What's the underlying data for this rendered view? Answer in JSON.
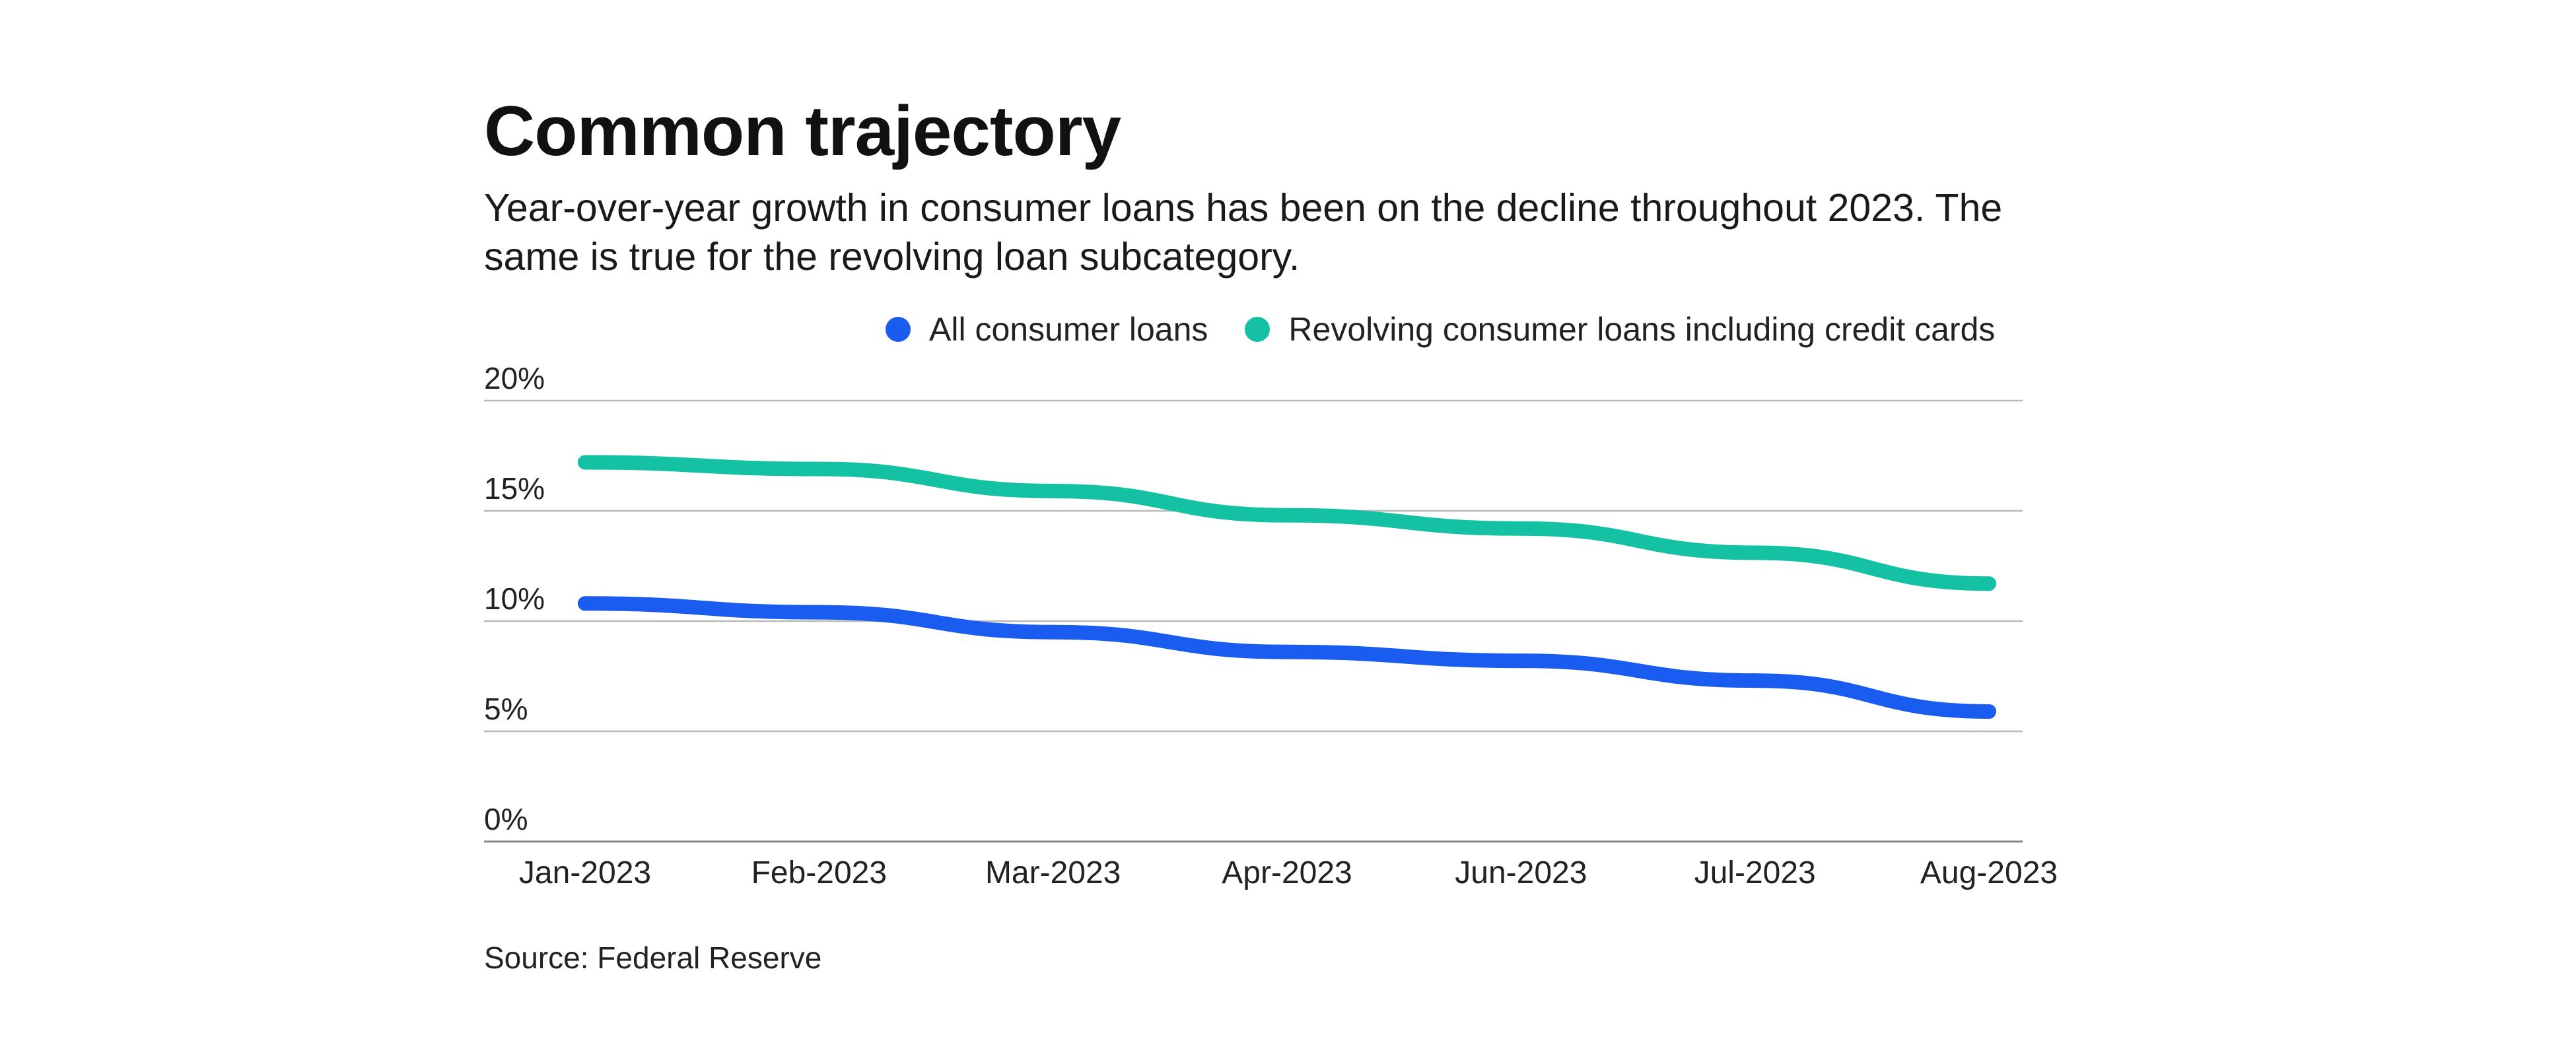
{
  "chart_data": {
    "type": "line",
    "title": "Common trajectory",
    "subtitle": "Year-over-year growth in consumer loans has been on the decline throughout 2023. The same is true for the revolving loan subcategory.",
    "categories": [
      "Jan-2023",
      "Feb-2023",
      "Mar-2023",
      "Apr-2023",
      "Jun-2023",
      "Jul-2023",
      "Aug-2023"
    ],
    "series": [
      {
        "name": "All consumer loans",
        "color": "#1a5cf0",
        "values": [
          10.8,
          10.4,
          9.5,
          8.6,
          8.2,
          7.3,
          5.9
        ]
      },
      {
        "name": "Revolving consumer loans including credit cards",
        "color": "#14c1a3",
        "values": [
          17.2,
          16.9,
          15.9,
          14.8,
          14.2,
          13.1,
          11.7
        ]
      }
    ],
    "ylim": [
      0,
      20
    ],
    "yticks": [
      0,
      5,
      10,
      15,
      20
    ],
    "ytick_labels": [
      "0%",
      "5%",
      "10%",
      "15%",
      "20%"
    ],
    "xlabel": "",
    "ylabel": "",
    "grid": true,
    "legend_position": "top",
    "source": "Source: Federal Reserve"
  }
}
